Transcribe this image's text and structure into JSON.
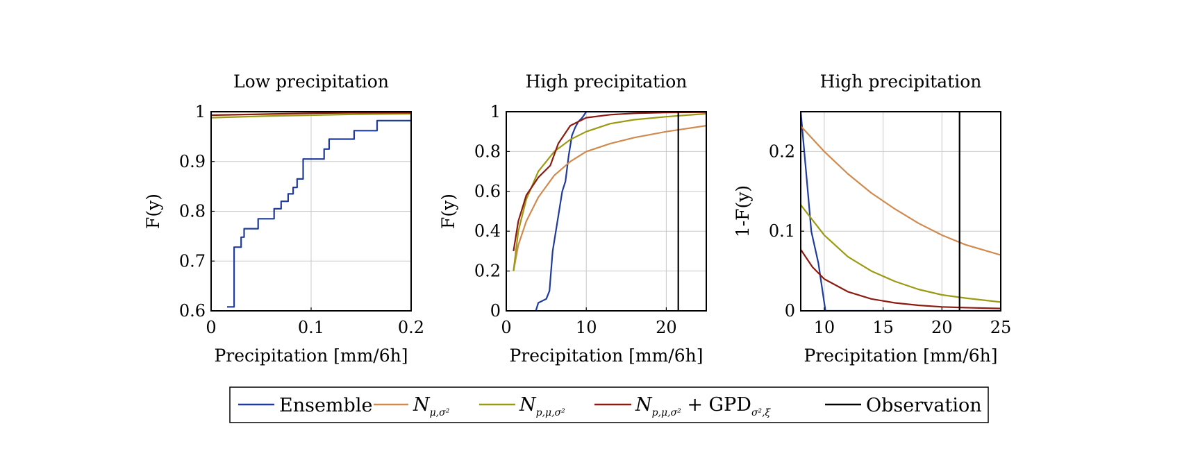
{
  "legend": {
    "items": [
      {
        "key": "ensemble",
        "label": "Ensemble",
        "color": "#1f3b9c"
      },
      {
        "key": "n_mu_sigma",
        "label": "N",
        "subscript": "μ,σ²",
        "color": "#d08a4e"
      },
      {
        "key": "n_p_mu_sigma",
        "label": "N",
        "subscript": "p,μ,σ²",
        "color": "#9c9a12"
      },
      {
        "key": "n_p_mu_sigma_gpd",
        "label": "N",
        "subscript": "p,μ,σ²",
        "suffix": " + GPD",
        "suffix_sub": "σ²,ξ",
        "color": "#8b1a10"
      },
      {
        "key": "observation",
        "label": "Observation",
        "color": "#000000"
      }
    ]
  },
  "chart_data": [
    {
      "type": "line",
      "title": "Low precipitation",
      "xlabel": "Precipitation [mm/6h]",
      "ylabel": "F(y)",
      "xlim": [
        0,
        0.2
      ],
      "ylim": [
        0.6,
        1.0
      ],
      "xticks": [
        0,
        0.1,
        0.2
      ],
      "xtick_labels": [
        "0",
        "0.1",
        "0.2"
      ],
      "yticks": [
        0.6,
        0.7,
        0.8,
        0.9,
        1.0
      ],
      "ytick_labels": [
        "0.6",
        "0.7",
        "0.8",
        "0.9",
        "1"
      ],
      "grid": true,
      "series": [
        {
          "key": "ensemble",
          "step": true,
          "x": [
            0.016,
            0.023,
            0.03,
            0.033,
            0.047,
            0.063,
            0.07,
            0.077,
            0.082,
            0.086,
            0.092,
            0.113,
            0.118,
            0.143,
            0.166,
            0.2
          ],
          "y": [
            0.608,
            0.728,
            0.748,
            0.765,
            0.785,
            0.805,
            0.82,
            0.835,
            0.848,
            0.865,
            0.905,
            0.925,
            0.945,
            0.962,
            0.982,
            0.982
          ]
        },
        {
          "key": "n_mu_sigma",
          "x": [
            0,
            0.2
          ],
          "y": [
            1.0,
            1.0
          ]
        },
        {
          "key": "n_p_mu_sigma",
          "x": [
            0,
            0.05,
            0.1,
            0.15,
            0.2
          ],
          "y": [
            0.988,
            0.991,
            0.993,
            0.995,
            0.996
          ]
        },
        {
          "key": "n_p_mu_sigma_gpd",
          "x": [
            0,
            0.05,
            0.1,
            0.15,
            0.2
          ],
          "y": [
            0.993,
            0.995,
            0.997,
            0.998,
            0.998
          ]
        }
      ]
    },
    {
      "type": "line",
      "title": "High precipitation",
      "xlabel": "Precipitation [mm/6h]",
      "ylabel": "F(y)",
      "xlim": [
        0,
        25
      ],
      "ylim": [
        0,
        1.0
      ],
      "xticks": [
        0,
        10,
        20
      ],
      "xtick_labels": [
        "0",
        "10",
        "20"
      ],
      "yticks": [
        0,
        0.2,
        0.4,
        0.6,
        0.8,
        1.0
      ],
      "ytick_labels": [
        "0",
        "0.2",
        "0.4",
        "0.6",
        "0.8",
        "1"
      ],
      "grid": true,
      "series": [
        {
          "key": "ensemble",
          "x": [
            3.7,
            4.0,
            5.0,
            5.4,
            5.8,
            6.2,
            6.6,
            7.0,
            7.4,
            7.8,
            8.2,
            8.6,
            9.0,
            9.5,
            10.0,
            25
          ],
          "y": [
            0.0,
            0.04,
            0.06,
            0.1,
            0.3,
            0.4,
            0.5,
            0.6,
            0.65,
            0.78,
            0.88,
            0.92,
            0.95,
            0.97,
            1.0,
            1.0
          ]
        },
        {
          "key": "n_mu_sigma",
          "x": [
            0.9,
            1.5,
            2.5,
            4,
            6,
            8,
            10,
            13,
            16,
            20,
            25
          ],
          "y": [
            0.2,
            0.33,
            0.45,
            0.57,
            0.68,
            0.75,
            0.8,
            0.84,
            0.87,
            0.9,
            0.93
          ]
        },
        {
          "key": "n_p_mu_sigma",
          "x": [
            0.9,
            1.5,
            2.5,
            4,
            6,
            8,
            10,
            13,
            16,
            20,
            25
          ],
          "y": [
            0.2,
            0.4,
            0.56,
            0.7,
            0.8,
            0.86,
            0.9,
            0.94,
            0.96,
            0.975,
            0.99
          ]
        },
        {
          "key": "n_p_mu_sigma_gpd",
          "x": [
            0.9,
            1.5,
            2.5,
            4,
            5.5,
            6.5,
            8,
            10,
            13,
            16,
            20,
            25
          ],
          "y": [
            0.3,
            0.45,
            0.58,
            0.67,
            0.73,
            0.84,
            0.93,
            0.97,
            0.985,
            0.992,
            0.996,
            0.998
          ]
        },
        {
          "key": "observation",
          "vertical": true,
          "x": [
            21.5,
            21.5
          ],
          "y": [
            0,
            1.0
          ]
        }
      ]
    },
    {
      "type": "line",
      "title": "High precipitation",
      "xlabel": "Precipitation [mm/6h]",
      "ylabel": "1-F(y)",
      "xlim": [
        8,
        25
      ],
      "ylim": [
        0,
        0.25
      ],
      "xticks": [
        10,
        15,
        20,
        25
      ],
      "xtick_labels": [
        "10",
        "15",
        "20",
        "25"
      ],
      "yticks": [
        0,
        0.1,
        0.2
      ],
      "ytick_labels": [
        "0",
        "0.1",
        "0.2"
      ],
      "grid": true,
      "series": [
        {
          "key": "ensemble",
          "x": [
            8.0,
            8.3,
            8.6,
            8.9,
            9.2,
            9.5,
            9.7,
            9.9,
            10.1,
            25
          ],
          "y": [
            0.25,
            0.2,
            0.15,
            0.1,
            0.08,
            0.06,
            0.04,
            0.02,
            0.0,
            0.0
          ]
        },
        {
          "key": "n_mu_sigma",
          "x": [
            8,
            10,
            12,
            14,
            16,
            18,
            20,
            22,
            25
          ],
          "y": [
            0.232,
            0.2,
            0.172,
            0.148,
            0.128,
            0.11,
            0.095,
            0.083,
            0.07
          ]
        },
        {
          "key": "n_p_mu_sigma",
          "x": [
            8,
            10,
            12,
            14,
            16,
            18,
            20,
            22,
            25
          ],
          "y": [
            0.133,
            0.095,
            0.068,
            0.05,
            0.037,
            0.027,
            0.02,
            0.016,
            0.011
          ]
        },
        {
          "key": "n_p_mu_sigma_gpd",
          "x": [
            8,
            9,
            10,
            12,
            14,
            16,
            18,
            20,
            22,
            25
          ],
          "y": [
            0.077,
            0.055,
            0.04,
            0.024,
            0.015,
            0.01,
            0.007,
            0.005,
            0.004,
            0.003
          ]
        },
        {
          "key": "observation",
          "vertical": true,
          "x": [
            21.5,
            21.5
          ],
          "y": [
            0,
            0.25
          ]
        }
      ]
    }
  ]
}
